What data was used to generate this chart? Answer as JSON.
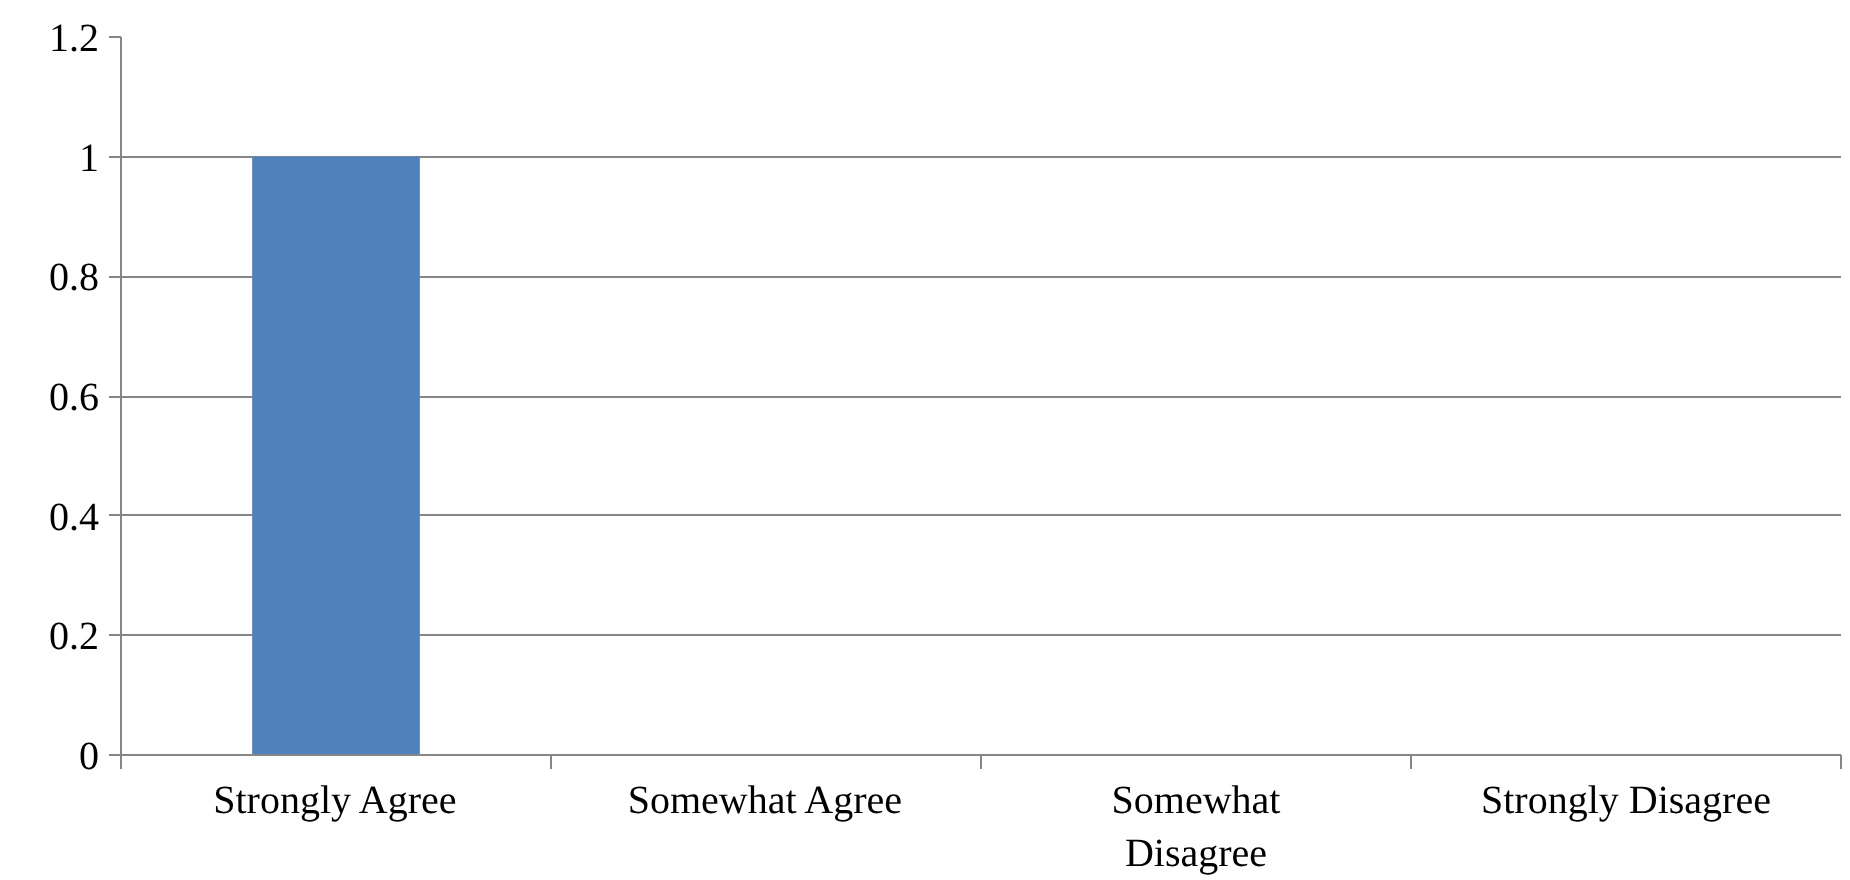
{
  "chart_data": {
    "type": "bar",
    "categories": [
      "Strongly Agree",
      "Somewhat Agree",
      "Somewhat Disagree",
      "Strongly Disagree"
    ],
    "values": [
      1,
      0,
      0,
      0
    ],
    "color": "#4f81bd",
    "ylim": [
      0,
      1.2
    ],
    "yticks": [
      0,
      0.2,
      0.4,
      0.6,
      0.8,
      1,
      1.2
    ],
    "grid": "y"
  }
}
